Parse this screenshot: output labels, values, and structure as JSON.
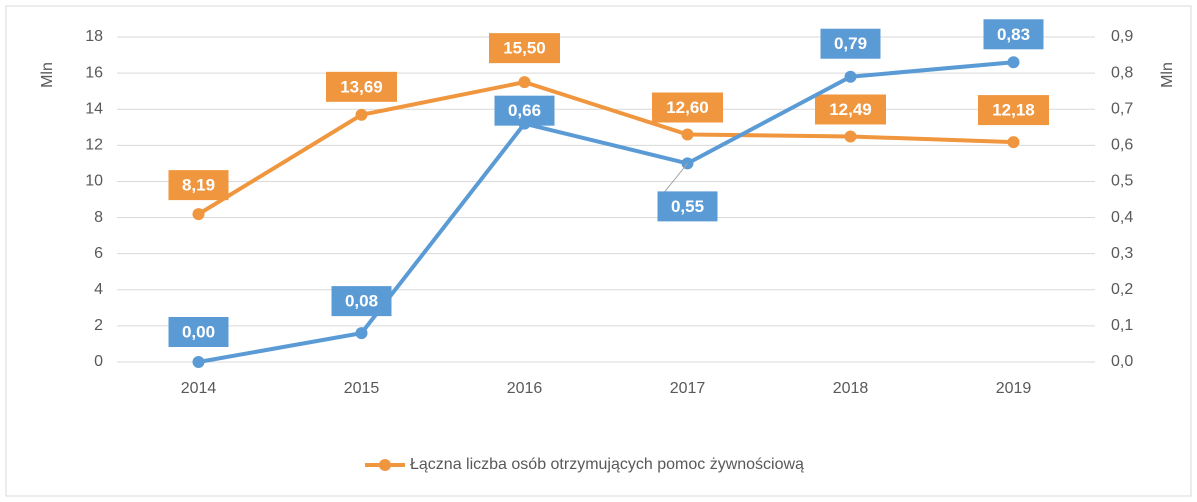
{
  "chart_data": {
    "type": "line",
    "categories": [
      "2014",
      "2015",
      "2016",
      "2017",
      "2018",
      "2019"
    ],
    "series": [
      {
        "name": "Łączna liczba osób otrzymujących pomoc żywnościową",
        "color": "#f0963e",
        "values": [
          8.19,
          13.69,
          15.5,
          12.6,
          12.49,
          12.18
        ],
        "value_labels": [
          "8,19",
          "13,69",
          "15,50",
          "12,60",
          "12,49",
          "12,18"
        ]
      },
      {
        "color": "#5b9bd5",
        "axis": "y2",
        "values": [
          0.0,
          0.08,
          0.66,
          0.55,
          0.79,
          0.83
        ],
        "value_labels": [
          "0,00",
          "0,08",
          "0,66",
          "0,55",
          "0,79",
          "0,83"
        ]
      }
    ],
    "ylabel": "Mln",
    "y2label": "Mln",
    "ylim": [
      0,
      18
    ],
    "yticks": [
      0,
      2,
      4,
      6,
      8,
      10,
      12,
      14,
      16,
      18
    ],
    "y2lim": [
      0,
      0.9
    ],
    "y2ticks": [
      {
        "value": 0,
        "label": "0,0"
      },
      {
        "value": 0.1,
        "label": "0,1"
      },
      {
        "value": 0.2,
        "label": "0,2"
      },
      {
        "value": 0.3,
        "label": "0,3"
      },
      {
        "value": 0.4,
        "label": "0,4"
      },
      {
        "value": 0.5,
        "label": "0,5"
      },
      {
        "value": 0.6,
        "label": "0,6"
      },
      {
        "value": 0.7,
        "label": "0,7"
      },
      {
        "value": 0.8,
        "label": "0,8"
      },
      {
        "value": 0.9,
        "label": "0,9"
      }
    ],
    "grid": true,
    "legend": "bottom"
  }
}
